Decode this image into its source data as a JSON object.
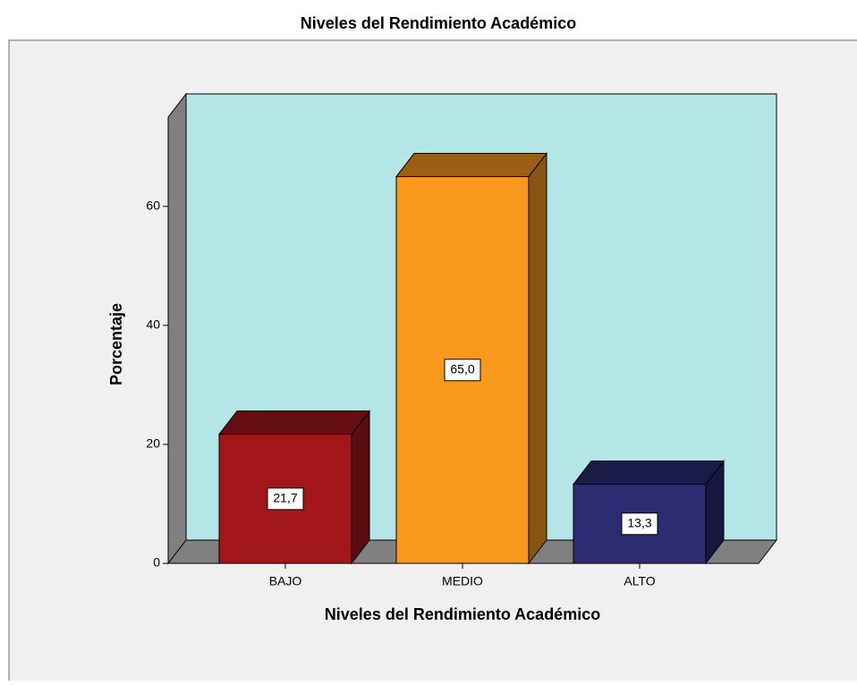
{
  "chart_data": {
    "type": "bar3d",
    "title": "Niveles del Rendimiento Académico",
    "x_label": "Niveles del Rendimiento Académico",
    "y_label": "Porcentaje",
    "categories": [
      "BAJO",
      "MEDIO",
      "ALTO"
    ],
    "values": [
      21.7,
      65.0,
      13.3
    ],
    "value_labels": [
      "21,7",
      "65,0",
      "13,3"
    ],
    "colors": [
      "#a3171b",
      "#f8991e",
      "#2b2c72"
    ],
    "ylim": [
      0,
      75
    ],
    "yticks": [
      0,
      20,
      40,
      60
    ]
  }
}
